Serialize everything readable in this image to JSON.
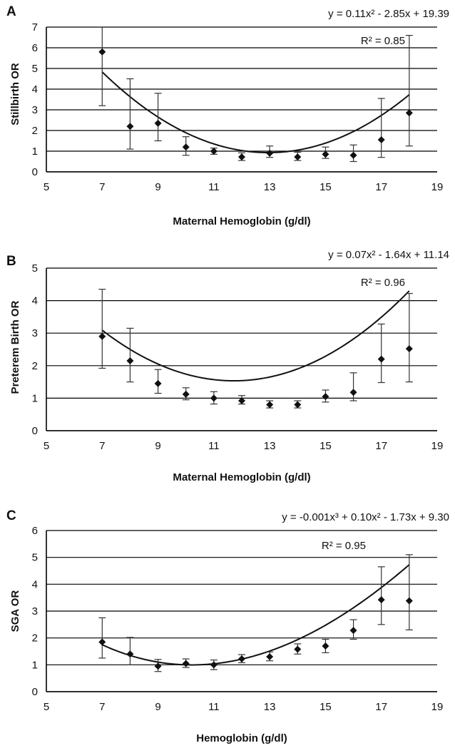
{
  "chart_data": [
    {
      "type": "scatter",
      "panel": "A",
      "xlabel": "Maternal Hemoglobin (g/dl)",
      "ylabel": "Stillbirth OR",
      "xlim": [
        5,
        19
      ],
      "ylim": [
        0,
        7
      ],
      "xticks": [
        "5",
        "7",
        "9",
        "11",
        "13",
        "15",
        "17",
        "19"
      ],
      "yticks": [
        "0",
        "1",
        "2",
        "3",
        "4",
        "5",
        "6",
        "7"
      ],
      "grid": true,
      "trend_equation_text": "y = 0.11x² - 2.85x + 19.39",
      "r2_text": "R² = 0.85",
      "trend_coefficients": [
        19.39,
        -2.85,
        0.11
      ],
      "points": [
        {
          "x": 7,
          "y": 5.8,
          "low": 3.2,
          "high": 7.3
        },
        {
          "x": 8,
          "y": 2.2,
          "low": 1.1,
          "high": 4.5
        },
        {
          "x": 9,
          "y": 2.35,
          "low": 1.5,
          "high": 3.8
        },
        {
          "x": 10,
          "y": 1.2,
          "low": 0.8,
          "high": 1.7
        },
        {
          "x": 11,
          "y": 1.0,
          "low": 0.85,
          "high": 1.15
        },
        {
          "x": 12,
          "y": 0.72,
          "low": 0.55,
          "high": 0.92
        },
        {
          "x": 13,
          "y": 0.9,
          "low": 0.7,
          "high": 1.25
        },
        {
          "x": 14,
          "y": 0.72,
          "low": 0.55,
          "high": 0.95
        },
        {
          "x": 15,
          "y": 0.85,
          "low": 0.65,
          "high": 1.2
        },
        {
          "x": 16,
          "y": 0.8,
          "low": 0.5,
          "high": 1.3
        },
        {
          "x": 17,
          "y": 1.55,
          "low": 0.7,
          "high": 3.55
        },
        {
          "x": 18,
          "y": 2.85,
          "low": 1.25,
          "high": 6.6
        }
      ]
    },
    {
      "type": "scatter",
      "panel": "B",
      "xlabel": "Maternal Hemoglobin (g/dl)",
      "ylabel": "Preterem Birth OR",
      "xlim": [
        5,
        19
      ],
      "ylim": [
        0,
        5
      ],
      "xticks": [
        "5",
        "7",
        "9",
        "11",
        "13",
        "15",
        "17",
        "19"
      ],
      "yticks": [
        "0",
        "1",
        "2",
        "3",
        "4",
        "5"
      ],
      "grid": true,
      "trend_equation_text": "y = 0.07x² - 1.64x + 11.14",
      "r2_text": "R² = 0.96",
      "trend_coefficients": [
        11.14,
        -1.64,
        0.07
      ],
      "points": [
        {
          "x": 7,
          "y": 2.9,
          "low": 1.92,
          "high": 4.35
        },
        {
          "x": 8,
          "y": 2.15,
          "low": 1.5,
          "high": 3.15
        },
        {
          "x": 9,
          "y": 1.45,
          "low": 1.15,
          "high": 1.88
        },
        {
          "x": 10,
          "y": 1.12,
          "low": 0.95,
          "high": 1.32
        },
        {
          "x": 11,
          "y": 1.0,
          "low": 0.82,
          "high": 1.2
        },
        {
          "x": 12,
          "y": 0.92,
          "low": 0.82,
          "high": 1.08
        },
        {
          "x": 13,
          "y": 0.8,
          "low": 0.7,
          "high": 0.92
        },
        {
          "x": 14,
          "y": 0.8,
          "low": 0.7,
          "high": 0.92
        },
        {
          "x": 15,
          "y": 1.05,
          "low": 0.88,
          "high": 1.25
        },
        {
          "x": 16,
          "y": 1.18,
          "low": 0.92,
          "high": 1.78
        },
        {
          "x": 17,
          "y": 2.2,
          "low": 1.48,
          "high": 3.28
        },
        {
          "x": 18,
          "y": 2.52,
          "low": 1.5,
          "high": 4.22
        }
      ]
    },
    {
      "type": "scatter",
      "panel": "C",
      "xlabel": "Hemoglobin (g/dl)",
      "ylabel": "SGA OR",
      "xlim": [
        5,
        19
      ],
      "ylim": [
        0,
        6
      ],
      "xticks": [
        "5",
        "7",
        "9",
        "11",
        "13",
        "15",
        "17",
        "19"
      ],
      "yticks": [
        "0",
        "1",
        "2",
        "3",
        "4",
        "5",
        "6"
      ],
      "grid": true,
      "trend_equation_text": "y = -0.001x³ + 0.10x² - 1.73x + 9.30",
      "r2_text": "R² = 0.95",
      "trend_coefficients": [
        9.3,
        -1.73,
        0.1,
        -0.001
      ],
      "points": [
        {
          "x": 7,
          "y": 1.85,
          "low": 1.25,
          "high": 2.75
        },
        {
          "x": 8,
          "y": 1.4,
          "low": 1.0,
          "high": 2.02
        },
        {
          "x": 9,
          "y": 0.95,
          "low": 0.75,
          "high": 1.2
        },
        {
          "x": 10,
          "y": 1.05,
          "low": 0.9,
          "high": 1.22
        },
        {
          "x": 11,
          "y": 1.0,
          "low": 0.82,
          "high": 1.18
        },
        {
          "x": 12,
          "y": 1.22,
          "low": 1.08,
          "high": 1.38
        },
        {
          "x": 13,
          "y": 1.3,
          "low": 1.15,
          "high": 1.48
        },
        {
          "x": 14,
          "y": 1.58,
          "low": 1.4,
          "high": 1.78
        },
        {
          "x": 15,
          "y": 1.7,
          "low": 1.45,
          "high": 1.95
        },
        {
          "x": 16,
          "y": 2.28,
          "low": 1.95,
          "high": 2.68
        },
        {
          "x": 17,
          "y": 3.42,
          "low": 2.5,
          "high": 4.65
        },
        {
          "x": 18,
          "y": 3.38,
          "low": 2.3,
          "high": 5.1
        }
      ]
    }
  ]
}
